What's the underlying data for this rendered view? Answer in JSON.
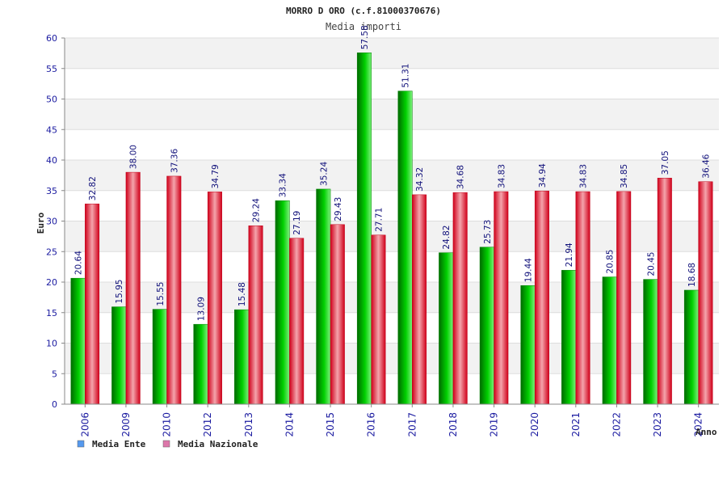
{
  "chart_data": {
    "type": "bar",
    "title": "MORRO D ORO (c.f.81000370676)",
    "subtitle": "Media importi",
    "xlabel": "Anno",
    "ylabel": "Euro",
    "ylim": [
      0,
      60
    ],
    "yticks": [
      0,
      5,
      10,
      15,
      20,
      25,
      30,
      35,
      40,
      45,
      50,
      55,
      60
    ],
    "grid": true,
    "legend_position": "bottom-left",
    "categories": [
      "2006",
      "2009",
      "2010",
      "2012",
      "2013",
      "2014",
      "2015",
      "2016",
      "2017",
      "2018",
      "2019",
      "2020",
      "2021",
      "2022",
      "2023",
      "2024"
    ],
    "series": [
      {
        "name": "Media Ente",
        "color": "#00b000",
        "legend_color": "#5599ee",
        "values": [
          20.64,
          15.95,
          15.55,
          13.09,
          15.48,
          33.34,
          35.24,
          57.58,
          51.31,
          24.82,
          25.73,
          19.44,
          21.94,
          20.85,
          20.45,
          18.68
        ],
        "labels": [
          "20.64",
          "15.95",
          "15.55",
          "13.09",
          "15.48",
          "33.34",
          "35.24",
          "57.58",
          "51.31",
          "24.82",
          "25.73",
          "19.44",
          "21.94",
          "20.85",
          "20.45",
          "18.68"
        ]
      },
      {
        "name": "Media Nazionale",
        "color": "#e0102a",
        "legend_color": "#dd77aa",
        "values": [
          32.82,
          38.0,
          37.36,
          34.79,
          29.24,
          27.19,
          29.43,
          27.71,
          34.32,
          34.68,
          34.83,
          34.94,
          34.83,
          34.85,
          37.05,
          36.46
        ],
        "labels": [
          "32.82",
          "38.00",
          "37.36",
          "34.79",
          "29.24",
          "27.19",
          "29.43",
          "27.71",
          "34.32",
          "34.68",
          "34.83",
          "34.94",
          "34.83",
          "34.85",
          "37.05",
          "36.46"
        ]
      }
    ]
  }
}
